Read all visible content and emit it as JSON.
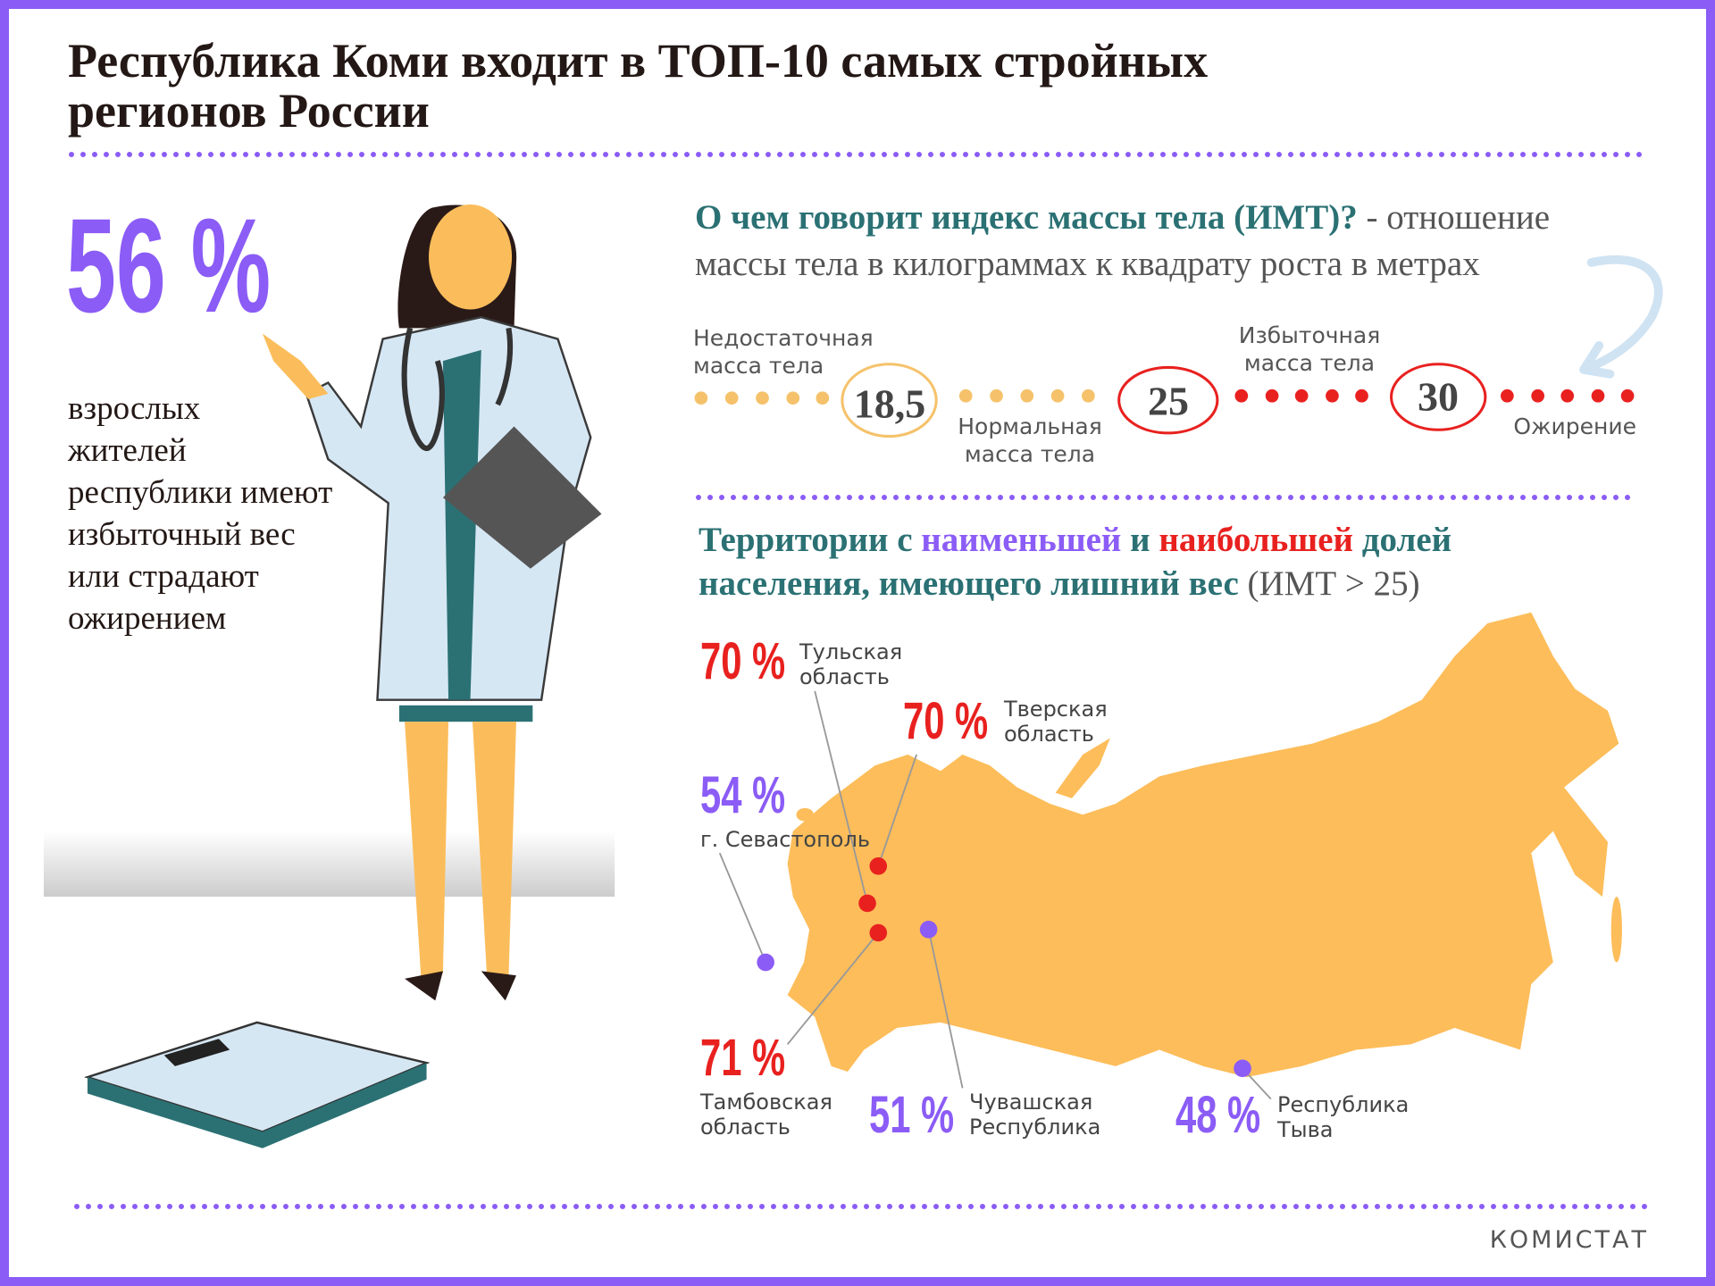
{
  "header": {
    "title_lines": [
      "Республика Коми входит в ТОП-10 самых стройных",
      "регионов России"
    ]
  },
  "stat": {
    "value": "56 %",
    "text_lines": [
      "взрослых",
      "жителей",
      "республики имеют",
      "избыточный вес",
      "или страдают",
      "ожирением"
    ]
  },
  "bmi": {
    "question": "О чем говорит индекс массы тела (ИМТ)?",
    "definition_lines": [
      " - отношение",
      "массы тела в килограммах к квадрату роста в метрах"
    ],
    "categories": [
      {
        "label_lines": [
          "Недостаточная",
          "масса тела"
        ]
      },
      {
        "label_lines": [
          "Нормальная",
          "масса тела"
        ]
      },
      {
        "label_lines": [
          "Избыточная",
          "масса тела"
        ]
      },
      {
        "label_lines": [
          "Ожирение"
        ]
      }
    ],
    "thresholds": [
      "18,5",
      "25",
      "30"
    ]
  },
  "territories": {
    "heading_lines": [
      [
        "Территории с ",
        "наименьшей",
        " и ",
        "наибольшей",
        " долей"
      ],
      [
        "населения, имеющего лишний вес",
        " (ИМТ > 25)"
      ]
    ]
  },
  "regions": [
    {
      "value": "70 %",
      "name_lines": [
        "Тульская",
        "область"
      ]
    },
    {
      "value": "70 %",
      "name_lines": [
        "Тверская",
        "область"
      ]
    },
    {
      "value": "54 %",
      "name_lines": [
        "г. Севастополь"
      ]
    },
    {
      "value": "71 %",
      "name_lines": [
        "Тамбовская",
        "область"
      ]
    },
    {
      "value": "51 %",
      "name_lines": [
        "Чувашская",
        "Республика"
      ]
    },
    {
      "value": "48 %",
      "name_lines": [
        "Республика",
        "Тыва"
      ]
    }
  ],
  "footer": {
    "source": "КОМИСТАТ"
  }
}
